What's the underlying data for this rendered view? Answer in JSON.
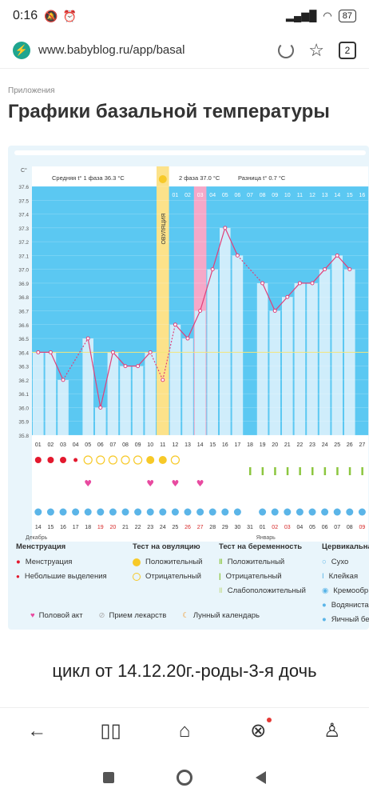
{
  "status_bar": {
    "time": "0:16",
    "battery": "87"
  },
  "browser": {
    "url": "www.babyblog.ru/app/basal",
    "tabs_count": "2"
  },
  "breadcrumb": "Приложения",
  "page_title": "Графики базальной температуры",
  "chart_labels": {
    "unit": "С°",
    "phase1": "Средняя t° 1 фаза 36.3 °С",
    "phase2": "2 фаза 37.0 °С",
    "diff": "Разница t° 0.7 °С",
    "ovulation": "ОВУЛЯЦИЯ",
    "month1": "Декабрь",
    "month2": "Январь"
  },
  "chart_data": {
    "type": "line",
    "ylim": [
      35.8,
      37.6
    ],
    "y_ticks": [
      "37.6",
      "37.5",
      "37.4",
      "37.3",
      "37.2",
      "37.1",
      "37.0",
      "36.9",
      "36.8",
      "36.7",
      "36.6",
      "36.5",
      "36.4",
      "36.3",
      "36.2",
      "36.1",
      "36.0",
      "35.9",
      "35.8"
    ],
    "cycle_days": [
      "01",
      "02",
      "03",
      "04",
      "05",
      "06",
      "07",
      "08",
      "09",
      "10",
      "11",
      "12",
      "13",
      "14",
      "15",
      "16",
      "17",
      "18",
      "19",
      "20",
      "21",
      "22",
      "23",
      "24",
      "25",
      "26",
      "27"
    ],
    "top_days": [
      "01",
      "02",
      "03",
      "04",
      "05",
      "06",
      "07",
      "08",
      "09",
      "10",
      "11",
      "12",
      "13",
      "14",
      "15",
      "16"
    ],
    "dates": [
      "14",
      "15",
      "16",
      "17",
      "18",
      "19",
      "20",
      "21",
      "22",
      "23",
      "24",
      "25",
      "26",
      "27",
      "28",
      "29",
      "30",
      "31",
      "01",
      "02",
      "03",
      "04",
      "05",
      "06",
      "07",
      "08",
      "09"
    ],
    "temperatures": [
      36.4,
      36.4,
      36.2,
      null,
      36.5,
      36.0,
      36.4,
      36.3,
      36.3,
      36.4,
      36.2,
      36.6,
      36.5,
      36.7,
      37.0,
      37.3,
      37.1,
      null,
      36.9,
      36.7,
      36.8,
      36.9,
      36.9,
      37.0,
      37.1,
      37.0
    ],
    "ovulation_day": 11,
    "highlight_day": 14,
    "menstruation": [
      2,
      2,
      2,
      1
    ],
    "ovulation_test": [
      0,
      0,
      0,
      0,
      1,
      1,
      1,
      1,
      1,
      2,
      2,
      1
    ],
    "intercourse_days": [
      5,
      10,
      12,
      14
    ],
    "pregnancy_test_start_day": 18
  },
  "legend": {
    "menstruation": {
      "title": "Менструация",
      "items": [
        "Менструация",
        "Небольшие выделения"
      ]
    },
    "ovulation_test": {
      "title": "Тест на овуляцию",
      "items": [
        "Положительный",
        "Отрицательный"
      ]
    },
    "pregnancy_test": {
      "title": "Тест на беременность",
      "items": [
        "Положительный",
        "Отрицательный",
        "Слабоположительный"
      ]
    },
    "cervical": {
      "title": "Цервикальная",
      "items": [
        "Сухо",
        "Клейкая",
        "Кремообр",
        "Водяниста",
        "Яичный бе"
      ]
    },
    "bottom": [
      "Половой акт",
      "Прием лекарств",
      "Лунный календарь"
    ]
  },
  "caption": "цикл от 14.12.20г.-роды-3-я дочь",
  "colors": {
    "accent": "#1fa58f",
    "sky": "#5bc8f2",
    "bar": "#cfedfb",
    "line": "#e0407a",
    "ovulation": "#fce28a",
    "highlight": "#f5a8c8"
  }
}
